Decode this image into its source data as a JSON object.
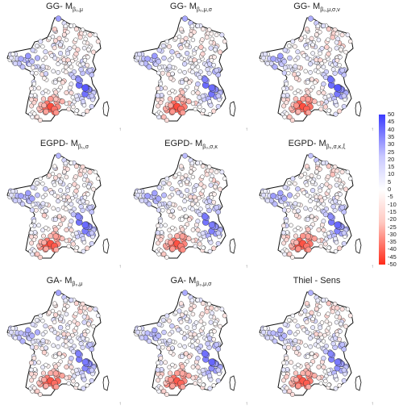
{
  "panels": [
    {
      "prefix": "GG- M",
      "sub": "β₀,μ"
    },
    {
      "prefix": "GG- M",
      "sub": "β₀,μ,σ"
    },
    {
      "prefix": "GG- M",
      "sub": "β₀,μ,σ,ν"
    },
    {
      "prefix": "EGPD- M",
      "sub": "β₀,σ"
    },
    {
      "prefix": "EGPD- M",
      "sub": "β₀,σ,κ"
    },
    {
      "prefix": "EGPD- M",
      "sub": "β₀,σ,κ,ξ"
    },
    {
      "prefix": "GA- M",
      "sub": "β₀,μ"
    },
    {
      "prefix": "GA- M",
      "sub": "β₀,μ,σ"
    },
    {
      "prefix": "Thiel - Sens",
      "sub": ""
    }
  ],
  "legend": {
    "ticks": [
      "50",
      "45",
      "40",
      "35",
      "30",
      "25",
      "20",
      "15",
      "10",
      "5",
      "0",
      "-5",
      "-10",
      "-15",
      "-20",
      "-25",
      "-30",
      "-35",
      "-40",
      "-45",
      "-50"
    ],
    "colors": {
      "positive": "#3b3bff",
      "zero": "#ffffff",
      "negative": "#ff2b1a"
    }
  },
  "north_arrow": "↑"
}
